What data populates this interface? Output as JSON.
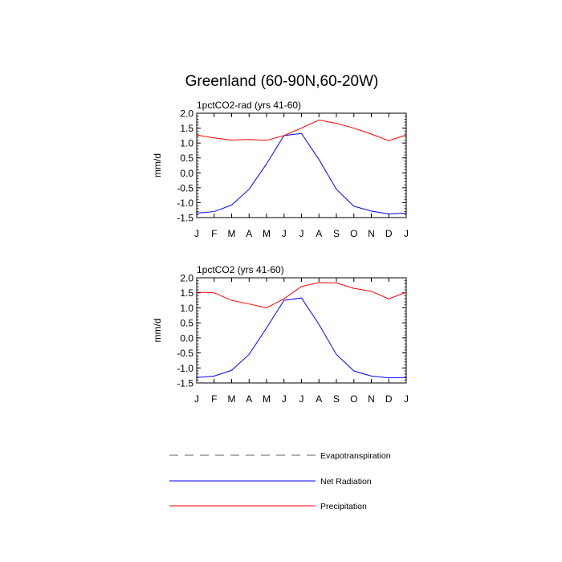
{
  "figure": {
    "title": "Greenland (60-90N,60-20W)"
  },
  "legend": {
    "placement": "bottom",
    "items": [
      {
        "label": "Evapotranspiration",
        "color": "#808080",
        "style": "dashed"
      },
      {
        "label": "Net Radiation",
        "color": "#0000ff",
        "style": "solid"
      },
      {
        "label": "Precipitation",
        "color": "#ff0000",
        "style": "solid"
      }
    ]
  },
  "chart_data": [
    {
      "type": "line",
      "title": "1pctCO2-rad (yrs 41-60)",
      "xlabel": "",
      "ylabel": "mm/d",
      "ylim": [
        -1.5,
        2.0
      ],
      "yticks": [
        "2.0",
        "1.5",
        "1.0",
        "0.5",
        "0.0",
        "-0.5",
        "-1.0",
        "-1.5"
      ],
      "categories": [
        "J",
        "F",
        "M",
        "A",
        "M",
        "J",
        "J",
        "A",
        "S",
        "O",
        "N",
        "D",
        "J"
      ],
      "series": [
        {
          "name": "Net Radiation",
          "color": "#0000ff",
          "values": [
            -1.35,
            -1.3,
            -1.08,
            -0.55,
            0.3,
            1.25,
            1.32,
            0.45,
            -0.55,
            -1.12,
            -1.28,
            -1.38,
            -1.35
          ]
        },
        {
          "name": "Precipitation",
          "color": "#ff0000",
          "values": [
            1.27,
            1.17,
            1.1,
            1.12,
            1.09,
            1.25,
            1.5,
            1.77,
            1.66,
            1.5,
            1.3,
            1.08,
            1.27
          ]
        }
      ]
    },
    {
      "type": "line",
      "title": "1pctCO2 (yrs 41-60)",
      "xlabel": "",
      "ylabel": "mm/d",
      "ylim": [
        -1.5,
        2.0
      ],
      "yticks": [
        "2.0",
        "1.5",
        "1.0",
        "0.5",
        "0.0",
        "-0.5",
        "-1.0",
        "-1.5"
      ],
      "categories": [
        "J",
        "F",
        "M",
        "A",
        "M",
        "J",
        "J",
        "A",
        "S",
        "O",
        "N",
        "D",
        "J"
      ],
      "series": [
        {
          "name": "Net Radiation",
          "color": "#0000ff",
          "values": [
            -1.32,
            -1.27,
            -1.08,
            -0.55,
            0.33,
            1.25,
            1.33,
            0.45,
            -0.55,
            -1.1,
            -1.27,
            -1.33,
            -1.32
          ]
        },
        {
          "name": "Precipitation",
          "color": "#ff0000",
          "values": [
            1.52,
            1.5,
            1.25,
            1.13,
            1.0,
            1.3,
            1.71,
            1.84,
            1.83,
            1.65,
            1.55,
            1.3,
            1.52
          ]
        }
      ]
    }
  ]
}
